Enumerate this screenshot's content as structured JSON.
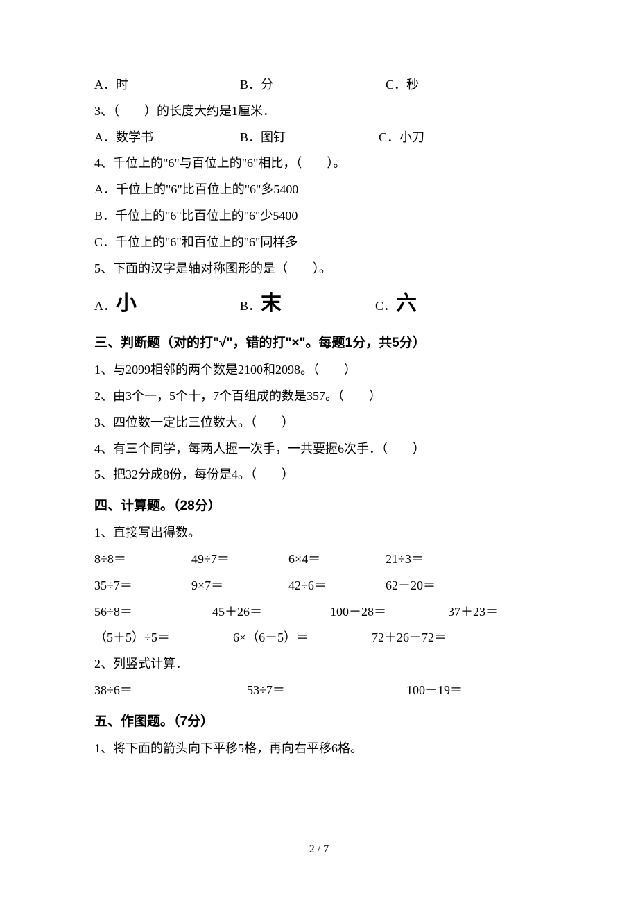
{
  "q2_continued": {
    "a": "A．时",
    "b": "B．分",
    "c": "C．秒"
  },
  "q3": {
    "stem": "3、（　　）的长度大约是1厘米．",
    "a": "A．数学书",
    "b": "B．图钉",
    "c": "C．小刀"
  },
  "q4": {
    "stem": "4、千位上的\"6\"与百位上的\"6\"相比，（　　）。",
    "a": "A．千位上的\"6\"比百位上的\"6\"多5400",
    "b": "B．千位上的\"6\"比百位上的\"6\"少5400",
    "c": "C．千位上的\"6\"和百位上的\"6\"同样多"
  },
  "q5": {
    "stem": "5、下面的汉字是轴对称图形的是（　　）。",
    "a_prefix": "A．",
    "a_char": "小",
    "b_prefix": "B．",
    "b_char": "末",
    "c_prefix": "C．",
    "c_char": "六"
  },
  "section3": {
    "heading": "三、判断题（对的打\"√\"，错的打\"×\"。每题1分，共5分）",
    "items": [
      "1、与2099相邻的两个数是2100和2098。（　　）",
      "2、由3个一，5个十，7个百组成的数是357。（　　）",
      "3、四位数一定比三位数大。（　　）",
      "4、有三个同学，每两人握一次手，一共要握6次手．（　　）",
      "5、把32分成8份，每份是4。（　　）"
    ]
  },
  "section4": {
    "heading": "四、计算题。（28分）",
    "sub1": "1、直接写出得数。",
    "row1": [
      "8÷8＝",
      "49÷7＝",
      "6×4＝",
      "21÷3＝"
    ],
    "row2": [
      "35÷7＝",
      "9×7＝",
      "42÷6＝",
      "62－20＝"
    ],
    "row3": [
      "56÷8＝",
      "45＋26＝",
      "100－28＝",
      "37＋23＝"
    ],
    "row4": [
      "（5＋5）÷5＝",
      "6×（6－5）＝",
      "72＋26－72＝"
    ],
    "sub2": "2、列竖式计算．",
    "row5": [
      "38÷6＝",
      "53÷7＝",
      "100－19＝"
    ]
  },
  "section5": {
    "heading": "五、作图题。（7分）",
    "item1": "1、将下面的箭头向下平移5格，再向右平移6格。"
  },
  "pagenum": "2 / 7"
}
